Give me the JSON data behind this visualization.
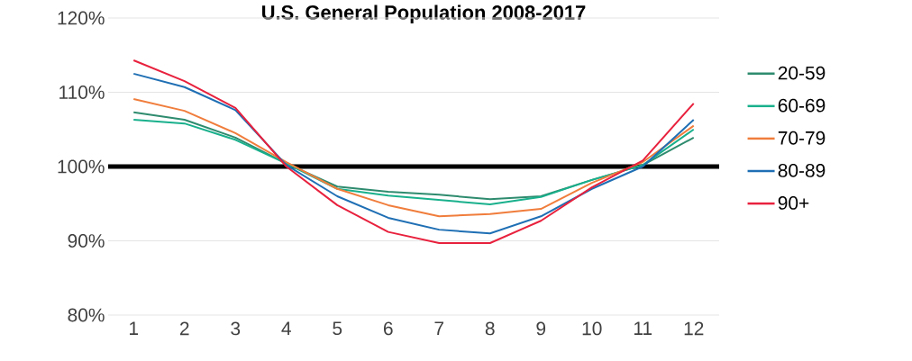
{
  "chart_data": {
    "type": "line",
    "title": "U.S. General Population 2008-2017",
    "categories": [
      "1",
      "2",
      "3",
      "4",
      "5",
      "6",
      "7",
      "8",
      "9",
      "10",
      "11",
      "12"
    ],
    "series": [
      {
        "name": "20-59",
        "color": "#2e8b6e",
        "values": [
          107.3,
          106.3,
          103.9,
          100.4,
          97.3,
          96.6,
          96.2,
          95.6,
          96,
          98.2,
          100.2,
          103.9
        ]
      },
      {
        "name": "60-69",
        "color": "#19b08c",
        "values": [
          106.3,
          105.8,
          103.6,
          100.4,
          97,
          96.1,
          95.5,
          94.9,
          95.9,
          98.2,
          100.2,
          105
        ]
      },
      {
        "name": "70-79",
        "color": "#f07d3c",
        "values": [
          109.1,
          107.5,
          104.5,
          100.6,
          97,
          94.8,
          93.3,
          93.6,
          94.3,
          97.8,
          100.6,
          105.5
        ]
      },
      {
        "name": "80-89",
        "color": "#1f6fb4",
        "values": [
          112.5,
          110.7,
          107.6,
          100.2,
          96,
          93.1,
          91.5,
          91,
          93.3,
          97,
          100,
          106.3
        ]
      },
      {
        "name": "90+",
        "color": "#e8213d",
        "values": [
          114.3,
          111.5,
          107.9,
          100,
          94.8,
          91.2,
          89.7,
          89.7,
          92.7,
          97.2,
          100.8,
          108.5
        ]
      }
    ],
    "ylim": [
      80,
      120
    ],
    "yticks": [
      {
        "value": 80,
        "label": "80%"
      },
      {
        "value": 90,
        "label": "90%"
      },
      {
        "value": 100,
        "label": "100%"
      },
      {
        "value": 110,
        "label": "110%"
      },
      {
        "value": 120,
        "label": "120%"
      }
    ],
    "ref_lines": [
      {
        "axis": "y",
        "value": 100,
        "color": "#000000"
      }
    ],
    "grid": "y",
    "legend": "right",
    "marker": "none",
    "line_style": "solid"
  }
}
